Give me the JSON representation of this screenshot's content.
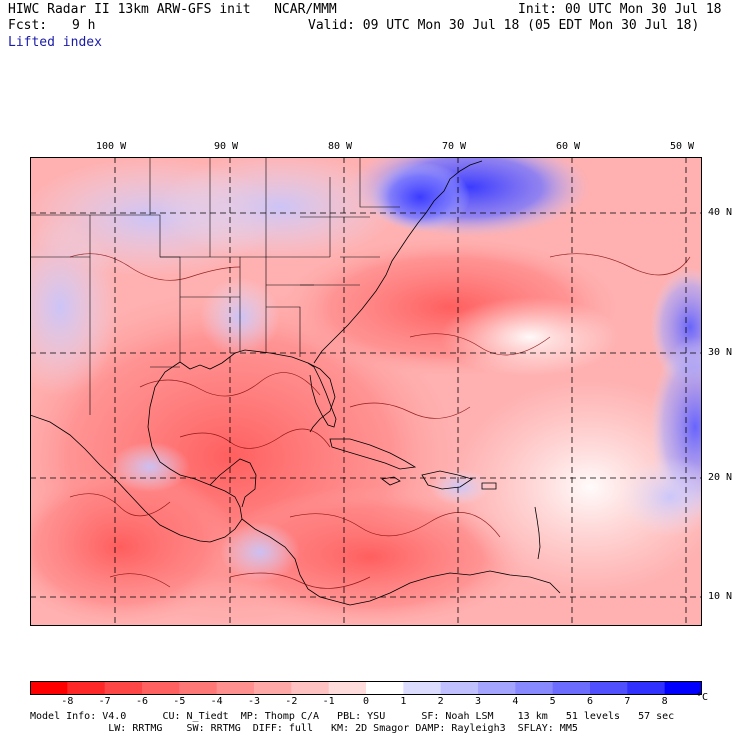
{
  "header": {
    "title": "HIWC Radar II 13km ARW-GFS init   NCAR/MMM",
    "init": "Init: 00 UTC Mon 30 Jul 18",
    "fcst_label": "Fcst:",
    "fcst_value": "9 h",
    "valid": "Valid: 09 UTC Mon 30 Jul 18 (05 EDT Mon 30 Jul 18)",
    "field": "Lifted index"
  },
  "map": {
    "lon_labels": [
      "100 W",
      "90 W",
      "80 W",
      "70 W",
      "60 W",
      "50 W"
    ],
    "lat_labels": [
      "40 N",
      "30 N",
      "20 N",
      "10 N"
    ]
  },
  "colorbar": {
    "unit": "°C",
    "tick_labels": [
      "-8",
      "-7",
      "-6",
      "-5",
      "-4",
      "-3",
      "-2",
      "-1",
      "0",
      "1",
      "2",
      "3",
      "4",
      "5",
      "6",
      "7",
      "8"
    ],
    "colors": [
      "#ff0000",
      "#ff2828",
      "#ff4646",
      "#ff6060",
      "#ff7878",
      "#ff9090",
      "#ffa8a8",
      "#ffc2c2",
      "#ffdcdc",
      "#ffffff",
      "#dcdcff",
      "#c0c0ff",
      "#a4a4ff",
      "#8888ff",
      "#6c6cff",
      "#5050ff",
      "#3030ff",
      "#0000ff"
    ]
  },
  "info": {
    "line1": "Model Info: V4.0      CU: N_Tiedt  MP: Thomp C/A   PBL: YSU      SF: Noah LSM    13 km   51 levels   57 sec",
    "line2": "             LW: RRTMG    SW: RRTMG  DIFF: full   KM: 2D Smagor DAMP: Rayleigh3  SFLAY: MM5"
  }
}
